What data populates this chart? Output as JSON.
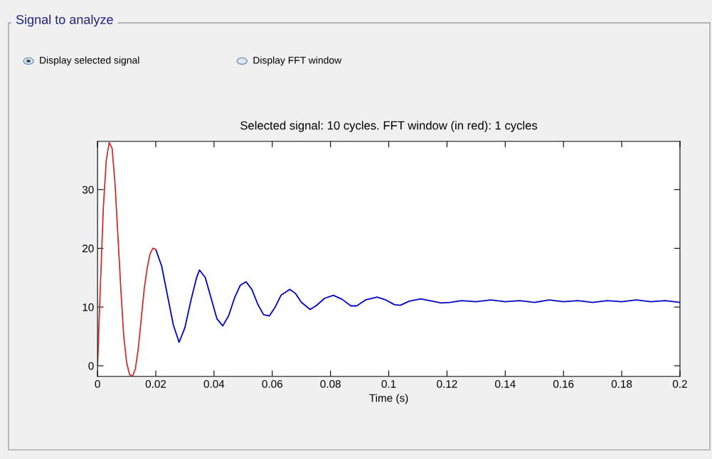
{
  "chart_data": {
    "type": "line",
    "title": "Selected signal: 10 cycles. FFT window (in red): 1 cycles",
    "xlabel": "Time (s)",
    "annotations": [
      "Signal to analyze",
      "Display selected signal",
      "Display FFT window"
    ],
    "series": [
      {
        "color": "#0000c8",
        "x": [
          0.02,
          0.022,
          0.024,
          0.026,
          0.028,
          0.03,
          0.032,
          0.034,
          0.035,
          0.037,
          0.039,
          0.041,
          0.043,
          0.045,
          0.047,
          0.049,
          0.051,
          0.053,
          0.055,
          0.057,
          0.059,
          0.061,
          0.063,
          0.066,
          0.068,
          0.07,
          0.073,
          0.075,
          0.078,
          0.081,
          0.084,
          0.087,
          0.089,
          0.092,
          0.096,
          0.099,
          0.102,
          0.104,
          0.107,
          0.111,
          0.114,
          0.118,
          0.121,
          0.125,
          0.13,
          0.135,
          0.14,
          0.145,
          0.15,
          0.155,
          0.16,
          0.165,
          0.17,
          0.175,
          0.18,
          0.185,
          0.19,
          0.195,
          0.2
        ],
        "values": [
          19.8,
          17,
          12,
          7,
          4,
          6.5,
          11,
          15,
          16.3,
          15,
          11.5,
          8,
          6.8,
          8.5,
          11.5,
          13.7,
          14.3,
          13,
          10.5,
          8.7,
          8.5,
          10,
          12,
          13,
          12.3,
          10.8,
          9.6,
          10.2,
          11.5,
          12,
          11.3,
          10.2,
          10.2,
          11.2,
          11.7,
          11.2,
          10.4,
          10.3,
          11,
          11.4,
          11.1,
          10.7,
          10.8,
          11.1,
          10.9,
          11.2,
          10.9,
          11.1,
          10.8,
          11.2,
          10.9,
          11.1,
          10.8,
          11.1,
          10.9,
          11.2,
          10.9,
          11.1,
          10.8
        ]
      },
      {
        "color": "#d03030",
        "x": [
          0,
          0.001,
          0.002,
          0.003,
          0.004,
          0.005,
          0.006,
          0.007,
          0.008,
          0.009,
          0.01,
          0.011,
          0.012,
          0.013,
          0.014,
          0.015,
          0.016,
          0.017,
          0.018,
          0.019,
          0.02
        ],
        "values": [
          0,
          14,
          27,
          35,
          38,
          37,
          31,
          22,
          13,
          5,
          0.5,
          -1.5,
          -1.8,
          -0.5,
          3,
          8,
          13,
          16.5,
          19,
          20,
          19.8
        ]
      }
    ],
    "xlim": [
      0,
      0.2
    ],
    "xticks": [
      0,
      0.02,
      0.04,
      0.06,
      0.08,
      0.1,
      0.12,
      0.14,
      0.16,
      0.18,
      0.2
    ],
    "ylim": [
      -1.8,
      38.2
    ],
    "yticks": [
      0,
      10,
      20,
      30
    ],
    "grid": false,
    "legend": false,
    "marker": "none",
    "line_style": "solid"
  }
}
